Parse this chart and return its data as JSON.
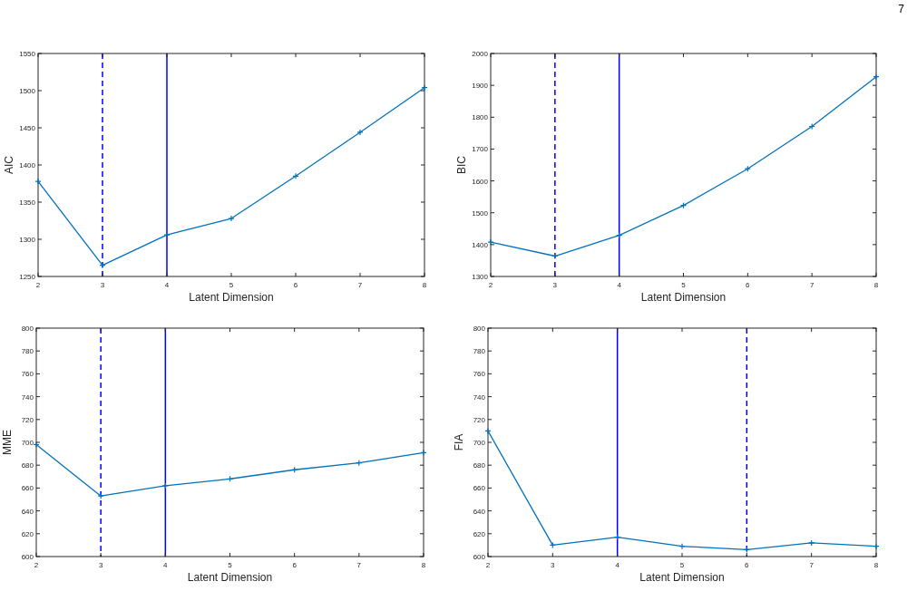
{
  "chart_data": [
    {
      "type": "line",
      "xlabel": "Latent Dimension",
      "ylabel": "AIC",
      "x": [
        2,
        3,
        4,
        5,
        6,
        7,
        8
      ],
      "series": [
        {
          "color": "#0072bd",
          "values": [
            1378,
            1265,
            1306,
            1328,
            1385,
            1444,
            1504
          ]
        }
      ],
      "xlim": [
        2,
        8
      ],
      "xticks": [
        2,
        3,
        4,
        5,
        6,
        7,
        8
      ],
      "ylim": [
        1250,
        1550
      ],
      "yticks": [
        1250,
        1300,
        1350,
        1400,
        1450,
        1500,
        1550
      ],
      "marker": "cross",
      "line_style": "solid",
      "grid": false,
      "ref_lines": [
        {
          "axis": "x",
          "value": 3,
          "color": "#0000ff",
          "line_style": "dashed"
        },
        {
          "axis": "x",
          "value": 4,
          "color": "#0000ff",
          "line_style": "solid"
        }
      ],
      "annotations": [
        "7"
      ]
    },
    {
      "type": "line",
      "xlabel": "Latent Dimension",
      "ylabel": "BIC",
      "x": [
        2,
        3,
        4,
        5,
        6,
        7,
        8
      ],
      "series": [
        {
          "color": "#0072bd",
          "values": [
            1408,
            1364,
            1429,
            1523,
            1638,
            1771,
            1927
          ]
        }
      ],
      "xlim": [
        2,
        8
      ],
      "xticks": [
        2,
        3,
        4,
        5,
        6,
        7,
        8
      ],
      "ylim": [
        1300,
        2000
      ],
      "yticks": [
        1300,
        1400,
        1500,
        1600,
        1700,
        1800,
        1900,
        2000
      ],
      "marker": "cross",
      "line_style": "solid",
      "grid": false,
      "ref_lines": [
        {
          "axis": "x",
          "value": 3,
          "color": "#0000ff",
          "line_style": "dashed"
        },
        {
          "axis": "x",
          "value": 4,
          "color": "#0000ff",
          "line_style": "solid"
        }
      ]
    },
    {
      "type": "line",
      "xlabel": "Latent Dimension",
      "ylabel": "MME",
      "x": [
        2,
        3,
        4,
        5,
        6,
        7,
        8
      ],
      "series": [
        {
          "color": "#0072bd",
          "values": [
            698,
            653,
            662,
            668,
            676,
            682,
            691
          ]
        }
      ],
      "xlim": [
        2,
        8
      ],
      "xticks": [
        2,
        3,
        4,
        5,
        6,
        7,
        8
      ],
      "ylim": [
        600,
        800
      ],
      "yticks": [
        600,
        620,
        640,
        660,
        680,
        700,
        720,
        740,
        760,
        780,
        800
      ],
      "marker": "cross",
      "line_style": "solid",
      "grid": false,
      "ref_lines": [
        {
          "axis": "x",
          "value": 3,
          "color": "#0000ff",
          "line_style": "dashed"
        },
        {
          "axis": "x",
          "value": 4,
          "color": "#0000ff",
          "line_style": "solid"
        }
      ]
    },
    {
      "type": "line",
      "xlabel": "Latent Dimension",
      "ylabel": "FIA",
      "x": [
        2,
        3,
        4,
        5,
        6,
        7,
        8
      ],
      "series": [
        {
          "color": "#0072bd",
          "values": [
            710,
            610,
            617,
            609,
            606,
            612,
            609
          ]
        }
      ],
      "xlim": [
        2,
        8
      ],
      "xticks": [
        2,
        3,
        4,
        5,
        6,
        7,
        8
      ],
      "ylim": [
        600,
        800
      ],
      "yticks": [
        600,
        620,
        640,
        660,
        680,
        700,
        720,
        740,
        760,
        780,
        800
      ],
      "marker": "cross",
      "line_style": "solid",
      "grid": false,
      "ref_lines": [
        {
          "axis": "x",
          "value": 4,
          "color": "#0000ff",
          "line_style": "solid"
        },
        {
          "axis": "x",
          "value": 6,
          "color": "#0000ff",
          "line_style": "dashed"
        }
      ]
    }
  ]
}
